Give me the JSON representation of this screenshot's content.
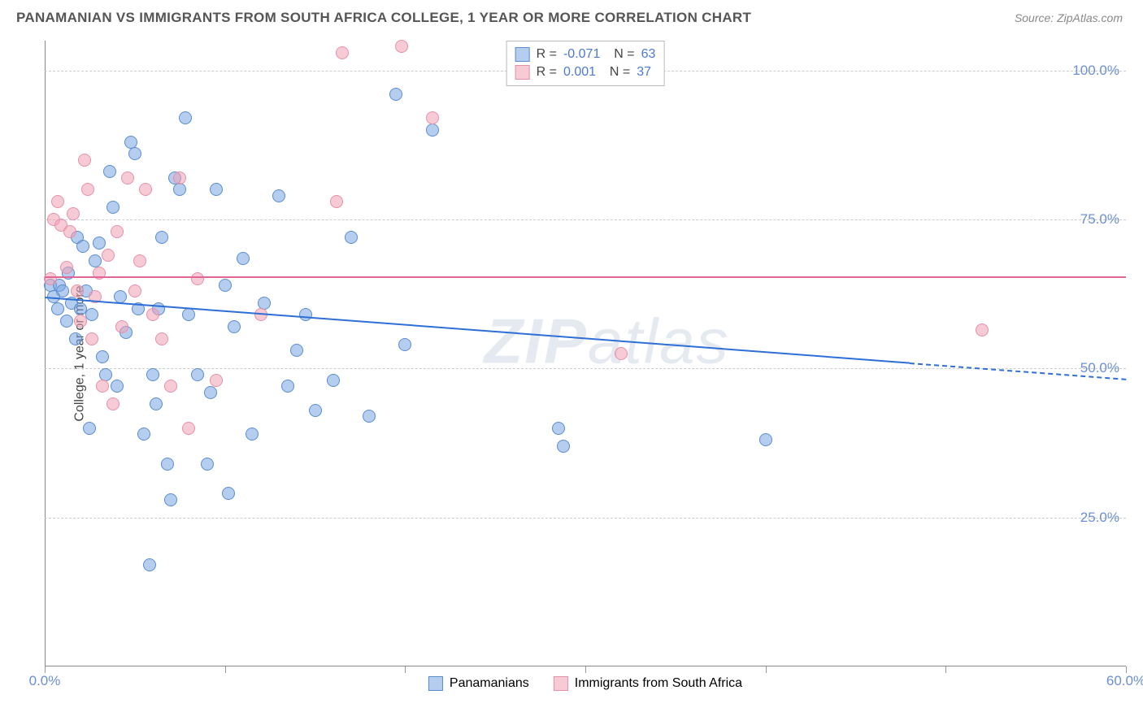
{
  "title": "PANAMANIAN VS IMMIGRANTS FROM SOUTH AFRICA COLLEGE, 1 YEAR OR MORE CORRELATION CHART",
  "source": "Source: ZipAtlas.com",
  "y_axis_title": "College, 1 year or more",
  "watermark_bold": "ZIP",
  "watermark_rest": "atlas",
  "chart": {
    "type": "scatter",
    "xlim": [
      0,
      60
    ],
    "ylim": [
      0,
      105
    ],
    "x_ticks": [
      0,
      10,
      20,
      30,
      40,
      50,
      60
    ],
    "x_tick_labels": [
      "0.0%",
      "",
      "",
      "",
      "",
      "",
      "60.0%"
    ],
    "y_grid": [
      25,
      50,
      75,
      100
    ],
    "y_tick_labels": [
      "25.0%",
      "50.0%",
      "75.0%",
      "100.0%"
    ],
    "grid_color": "#cccccc",
    "background": "#ffffff",
    "series": [
      {
        "name": "Panamanians",
        "fill": "rgba(120,165,225,0.55)",
        "stroke": "#5a8cd0",
        "marker_radius": 8,
        "stroke_width": 1.3,
        "R": "-0.071",
        "N": "63",
        "trend": {
          "x1": 0,
          "y1": 62,
          "x2": 48,
          "y2": 51,
          "x2_dash": 60,
          "y2_dash": 48.3,
          "color": "#2d6fd6"
        },
        "points": [
          [
            0.3,
            64
          ],
          [
            0.5,
            62
          ],
          [
            0.7,
            60
          ],
          [
            0.8,
            64
          ],
          [
            1.0,
            63
          ],
          [
            1.2,
            58
          ],
          [
            1.3,
            66
          ],
          [
            1.5,
            61
          ],
          [
            1.7,
            55
          ],
          [
            1.8,
            72
          ],
          [
            2.0,
            60
          ],
          [
            2.1,
            70.5
          ],
          [
            2.3,
            63
          ],
          [
            2.5,
            40
          ],
          [
            2.6,
            59
          ],
          [
            2.8,
            68
          ],
          [
            3.0,
            71
          ],
          [
            3.2,
            52
          ],
          [
            3.4,
            49
          ],
          [
            3.6,
            83
          ],
          [
            3.8,
            77
          ],
          [
            4.0,
            47
          ],
          [
            4.2,
            62
          ],
          [
            4.5,
            56
          ],
          [
            4.8,
            88
          ],
          [
            5.0,
            86
          ],
          [
            5.2,
            60
          ],
          [
            5.5,
            39
          ],
          [
            5.8,
            17
          ],
          [
            6.0,
            49
          ],
          [
            6.2,
            44
          ],
          [
            6.5,
            72
          ],
          [
            6.8,
            34
          ],
          [
            7.0,
            28
          ],
          [
            7.2,
            82
          ],
          [
            7.5,
            80
          ],
          [
            7.8,
            92
          ],
          [
            8.0,
            59
          ],
          [
            8.5,
            49
          ],
          [
            9.0,
            34
          ],
          [
            9.2,
            46
          ],
          [
            9.5,
            80
          ],
          [
            10.0,
            64
          ],
          [
            10.2,
            29
          ],
          [
            10.5,
            57
          ],
          [
            11.0,
            68.5
          ],
          [
            11.5,
            39
          ],
          [
            12.2,
            61
          ],
          [
            13.0,
            79
          ],
          [
            13.5,
            47
          ],
          [
            14.0,
            53
          ],
          [
            14.5,
            59
          ],
          [
            15.0,
            43
          ],
          [
            16.0,
            48
          ],
          [
            17.0,
            72
          ],
          [
            18.0,
            42
          ],
          [
            19.5,
            96
          ],
          [
            20.0,
            54
          ],
          [
            21.5,
            90
          ],
          [
            28.5,
            40
          ],
          [
            28.8,
            37
          ],
          [
            40.0,
            38
          ],
          [
            6.3,
            60
          ]
        ]
      },
      {
        "name": "Immigrants from South Africa",
        "fill": "rgba(240,160,180,0.55)",
        "stroke": "#e690a8",
        "marker_radius": 8,
        "stroke_width": 1.3,
        "R": "0.001",
        "N": "37",
        "trend": {
          "x1": 0,
          "y1": 65.5,
          "x2": 60,
          "y2": 65.5,
          "x2_dash": 60,
          "y2_dash": 65.5,
          "color": "#e06795"
        },
        "points": [
          [
            0.3,
            65
          ],
          [
            0.5,
            75
          ],
          [
            0.7,
            78
          ],
          [
            0.9,
            74
          ],
          [
            1.2,
            67
          ],
          [
            1.4,
            73
          ],
          [
            1.6,
            76
          ],
          [
            1.8,
            63
          ],
          [
            2.0,
            58
          ],
          [
            2.2,
            85
          ],
          [
            2.4,
            80
          ],
          [
            2.6,
            55
          ],
          [
            2.8,
            62
          ],
          [
            3.0,
            66
          ],
          [
            3.2,
            47
          ],
          [
            3.5,
            69
          ],
          [
            3.8,
            44
          ],
          [
            4.0,
            73
          ],
          [
            4.3,
            57
          ],
          [
            4.6,
            82
          ],
          [
            5.0,
            63
          ],
          [
            5.3,
            68
          ],
          [
            5.6,
            80
          ],
          [
            6.0,
            59
          ],
          [
            6.5,
            55
          ],
          [
            7.0,
            47
          ],
          [
            7.5,
            82
          ],
          [
            8.0,
            40
          ],
          [
            8.5,
            65
          ],
          [
            9.5,
            48
          ],
          [
            12.0,
            59
          ],
          [
            16.2,
            78
          ],
          [
            16.5,
            103
          ],
          [
            19.8,
            104
          ],
          [
            21.5,
            92
          ],
          [
            32.0,
            52.5
          ],
          [
            52.0,
            56.5
          ]
        ]
      }
    ],
    "legend_bottom": [
      {
        "swatch_fill": "rgba(120,165,225,0.55)",
        "swatch_stroke": "#5a8cd0",
        "label": "Panamanians"
      },
      {
        "swatch_fill": "rgba(240,160,180,0.55)",
        "swatch_stroke": "#e690a8",
        "label": "Immigrants from South Africa"
      }
    ]
  }
}
